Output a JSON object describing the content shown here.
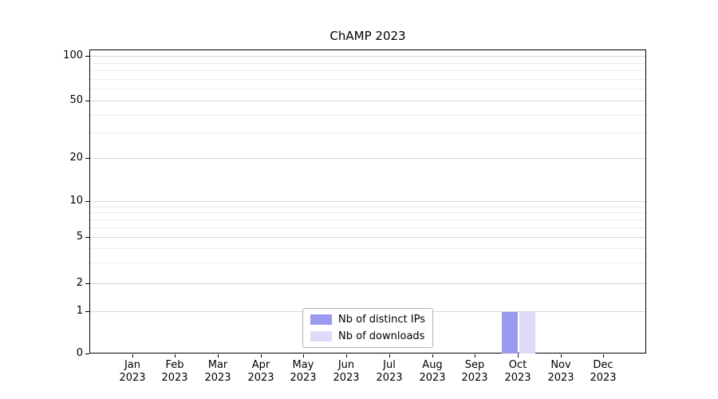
{
  "chart_data": {
    "type": "bar",
    "title": "ChAMP 2023",
    "x": {
      "months": [
        "Jan",
        "Feb",
        "Mar",
        "Apr",
        "May",
        "Jun",
        "Jul",
        "Aug",
        "Sep",
        "Oct",
        "Nov",
        "Dec"
      ],
      "year": "2023"
    },
    "y_axis": {
      "scale": "symlog",
      "ticks": [
        0,
        1,
        2,
        5,
        10,
        20,
        50,
        100
      ],
      "minor_ticks": [
        3,
        4,
        6,
        7,
        8,
        9,
        30,
        40,
        60,
        70,
        80,
        90
      ],
      "ylim": [
        0,
        112
      ],
      "grid": "both"
    },
    "series": [
      {
        "name": "Nb of distinct IPs",
        "color": "#9a99ee",
        "values": [
          0,
          0,
          0,
          0,
          0,
          0,
          0,
          0,
          0,
          1,
          0,
          0
        ]
      },
      {
        "name": "Nb of downloads",
        "color": "#dcdcf8",
        "values": [
          0,
          0,
          0,
          0,
          0,
          0,
          0,
          0,
          0,
          1,
          0,
          0
        ]
      }
    ],
    "legend": {
      "position": "lower center"
    }
  }
}
